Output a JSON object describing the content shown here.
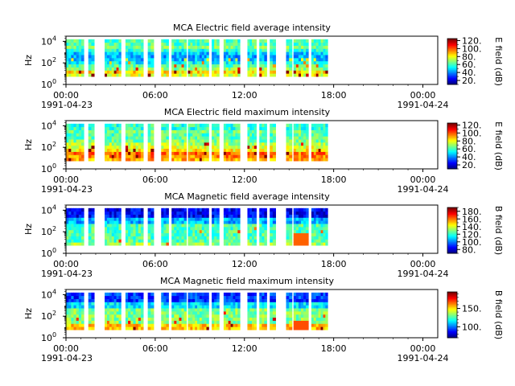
{
  "chart_data": [
    {
      "type": "heatmap",
      "title": "MCA  Electric field average intensity",
      "ylabel": "Hz",
      "yscale": "log",
      "ylim": [
        1,
        30000
      ],
      "yticks": [
        "10^0",
        "10^2",
        "10^4"
      ],
      "xlim": [
        "1991-04-23 00:00",
        "1991-04-24 01:00"
      ],
      "xticks": [
        "00:00",
        "06:00",
        "12:00",
        "18:00",
        "00:00"
      ],
      "xdates": [
        "1991-04-23",
        "1991-04-24"
      ],
      "colorbar": {
        "label": "E field (dB)",
        "min": 10,
        "max": 125,
        "ticks": [
          "20.",
          "40.",
          "60.",
          "80.",
          "100.",
          "120."
        ]
      },
      "data_segments_hours": [
        [
          0.0,
          1.2
        ],
        [
          1.5,
          1.9
        ],
        [
          2.6,
          3.7
        ],
        [
          4.0,
          5.2
        ],
        [
          5.5,
          5.9
        ],
        [
          6.4,
          6.9
        ],
        [
          7.1,
          8.1
        ],
        [
          8.2,
          9.6
        ],
        [
          9.8,
          10.3
        ],
        [
          10.6,
          11.7
        ],
        [
          12.2,
          12.8
        ],
        [
          13.0,
          13.5
        ],
        [
          13.7,
          14.1
        ],
        [
          14.8,
          15.2
        ],
        [
          15.3,
          16.3
        ],
        [
          16.5,
          17.6
        ]
      ],
      "intensity_profile": "mostly cyan/green (≈40–70 dB) with yellow-red bursts (≈90–115 dB) at low frequencies"
    },
    {
      "type": "heatmap",
      "title": "MCA  Electric field maximum intensity",
      "ylabel": "Hz",
      "yscale": "log",
      "ylim": [
        1,
        30000
      ],
      "yticks": [
        "10^0",
        "10^2",
        "10^4"
      ],
      "xlim": [
        "1991-04-23 00:00",
        "1991-04-24 01:00"
      ],
      "xticks": [
        "00:00",
        "06:00",
        "12:00",
        "18:00",
        "00:00"
      ],
      "xdates": [
        "1991-04-23",
        "1991-04-24"
      ],
      "colorbar": {
        "label": "E field (dB)",
        "min": 10,
        "max": 125,
        "ticks": [
          "20.",
          "40.",
          "60.",
          "80.",
          "100.",
          "120."
        ]
      },
      "data_segments_hours": [
        [
          0.0,
          1.2
        ],
        [
          1.5,
          1.9
        ],
        [
          2.6,
          3.7
        ],
        [
          4.0,
          5.2
        ],
        [
          5.5,
          5.9
        ],
        [
          6.4,
          6.9
        ],
        [
          7.1,
          8.1
        ],
        [
          8.2,
          9.6
        ],
        [
          9.8,
          10.3
        ],
        [
          10.6,
          11.7
        ],
        [
          12.2,
          12.8
        ],
        [
          13.0,
          13.5
        ],
        [
          13.7,
          14.1
        ],
        [
          14.8,
          15.2
        ],
        [
          15.3,
          16.3
        ],
        [
          16.5,
          17.6
        ]
      ],
      "intensity_profile": "green/yellow (≈60–90 dB) with orange patches (≈100 dB)"
    },
    {
      "type": "heatmap",
      "title": "MCA  Magnetic field average intensity",
      "ylabel": "Hz",
      "yscale": "log",
      "ylim": [
        1,
        30000
      ],
      "yticks": [
        "10^0",
        "10^2",
        "10^4"
      ],
      "xlim": [
        "1991-04-23 00:00",
        "1991-04-24 01:00"
      ],
      "xticks": [
        "00:00",
        "06:00",
        "12:00",
        "18:00",
        "00:00"
      ],
      "xdates": [
        "1991-04-23",
        "1991-04-24"
      ],
      "colorbar": {
        "label": "B field (dB)",
        "min": 70,
        "max": 190,
        "ticks": [
          "80.",
          "100.",
          "120.",
          "140.",
          "160.",
          "180."
        ]
      },
      "data_segments_hours": [
        [
          0.0,
          1.2
        ],
        [
          1.5,
          1.9
        ],
        [
          2.6,
          3.7
        ],
        [
          4.0,
          5.2
        ],
        [
          5.5,
          5.9
        ],
        [
          6.4,
          6.9
        ],
        [
          7.1,
          8.1
        ],
        [
          8.2,
          9.6
        ],
        [
          9.8,
          10.3
        ],
        [
          10.6,
          11.7
        ],
        [
          12.2,
          12.8
        ],
        [
          13.0,
          13.5
        ],
        [
          13.7,
          14.1
        ],
        [
          14.8,
          15.2
        ],
        [
          15.3,
          16.3
        ],
        [
          16.5,
          17.6
        ]
      ],
      "intensity_profile": "blue (≈80 dB) at high frequencies, green (≈130 dB) at low frequencies, orange burst near 16:00"
    },
    {
      "type": "heatmap",
      "title": "MCA  Magnetic field maximum intensity",
      "ylabel": "Hz",
      "yscale": "log",
      "ylim": [
        1,
        30000
      ],
      "yticks": [
        "10^0",
        "10^2",
        "10^4"
      ],
      "xlim": [
        "1991-04-23 00:00",
        "1991-04-24 01:00"
      ],
      "xticks": [
        "00:00",
        "06:00",
        "12:00",
        "18:00",
        "00:00"
      ],
      "xdates": [
        "1991-04-23",
        "1991-04-24"
      ],
      "colorbar": {
        "label": "B field (dB)",
        "min": 70,
        "max": 195,
        "ticks": [
          "100.",
          "150."
        ]
      },
      "data_segments_hours": [
        [
          0.0,
          1.2
        ],
        [
          1.5,
          1.9
        ],
        [
          2.6,
          3.7
        ],
        [
          4.0,
          5.2
        ],
        [
          5.5,
          5.9
        ],
        [
          6.4,
          6.9
        ],
        [
          7.1,
          8.1
        ],
        [
          8.2,
          9.6
        ],
        [
          9.8,
          10.3
        ],
        [
          10.6,
          11.7
        ],
        [
          12.2,
          12.8
        ],
        [
          13.0,
          13.5
        ],
        [
          13.7,
          14.1
        ],
        [
          14.8,
          15.2
        ],
        [
          15.3,
          16.3
        ],
        [
          16.5,
          17.6
        ]
      ],
      "intensity_profile": "blue at top, green/cyan middle, yellow-orange at lowest frequencies"
    }
  ]
}
